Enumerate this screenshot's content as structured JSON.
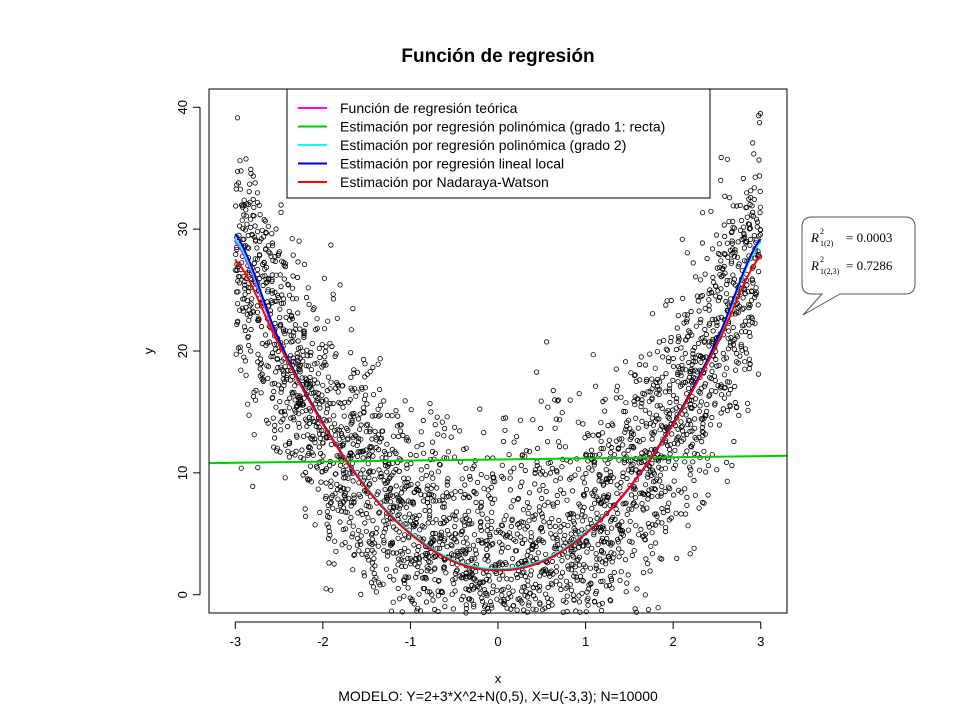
{
  "chart_data": {
    "type": "scatter",
    "title": "Función de regresión",
    "xlabel": "x",
    "ylabel": "y",
    "subtitle": "MODELO: Y=2+3*X^2+N(0,5), X=U(-3,3);  N=10000",
    "xlim": [
      -3.3,
      3.3
    ],
    "ylim": [
      -1.5,
      41.5
    ],
    "xticks": [
      -3,
      -2,
      -1,
      0,
      1,
      2,
      3
    ],
    "yticks": [
      0,
      10,
      20,
      30,
      40
    ],
    "xtick_labels": [
      "-3",
      "-2",
      "-1",
      "0",
      "1",
      "2",
      "3"
    ],
    "ytick_labels": [
      "0",
      "10",
      "20",
      "30",
      "40"
    ],
    "points": {
      "n": 10000,
      "description_model": "Y=2+3*X^2+N(0,5), X=U(-3,3)",
      "color": "#000000",
      "marker": "open-circle"
    },
    "series": [
      {
        "name": "Función de regresión teórica",
        "color": "#ff00ff",
        "x": [
          -3,
          -2.5,
          -2,
          -1.5,
          -1,
          -0.5,
          0,
          0.5,
          1,
          1.5,
          2,
          2.5,
          3
        ],
        "y": [
          29,
          20.75,
          14,
          8.75,
          5,
          2.75,
          2,
          2.75,
          5,
          8.75,
          14,
          20.75,
          29
        ]
      },
      {
        "name": "Estimación por regresión polinómica (grado 1: recta)",
        "color": "#00cc00",
        "x": [
          -3.3,
          3.3
        ],
        "y": [
          10.8,
          11.4
        ]
      },
      {
        "name": "Estimación por regresión polinómica (grado 2)",
        "color": "#00ffff",
        "x": [
          -3,
          -2.5,
          -2,
          -1.5,
          -1,
          -0.5,
          0,
          0.5,
          1,
          1.5,
          2,
          2.5,
          3
        ],
        "y": [
          29.2,
          20.9,
          14.1,
          8.8,
          5.1,
          2.8,
          2.1,
          2.8,
          5.1,
          8.8,
          14.1,
          20.8,
          29
        ]
      },
      {
        "name": "Estimación por regresión lineal local",
        "color": "#0000cc",
        "x": [
          -3,
          -2.5,
          -2,
          -1.5,
          -1,
          -0.5,
          0,
          0.5,
          1,
          1.5,
          2,
          2.5,
          3
        ],
        "y": [
          29.6,
          20.9,
          14.1,
          8.7,
          5,
          2.7,
          2,
          2.7,
          5,
          8.8,
          14.1,
          20.9,
          29.2
        ]
      },
      {
        "name": "Estimación por Nadaraya-Watson",
        "color": "#ff0000",
        "x": [
          -3,
          -2.5,
          -2,
          -1.5,
          -1,
          -0.5,
          0,
          0.5,
          1,
          1.5,
          2,
          2.5,
          3
        ],
        "y": [
          27.5,
          20.5,
          14,
          8.7,
          5,
          2.7,
          2,
          2.7,
          5,
          8.8,
          14,
          20.5,
          27.8
        ]
      }
    ],
    "legend_position": "top",
    "grid": false
  },
  "callout": {
    "line1_value": "= 0.0003",
    "line2_value": "= 0.7286",
    "line1_sub": "1(2)",
    "line2_sub": "1(2,3)"
  }
}
